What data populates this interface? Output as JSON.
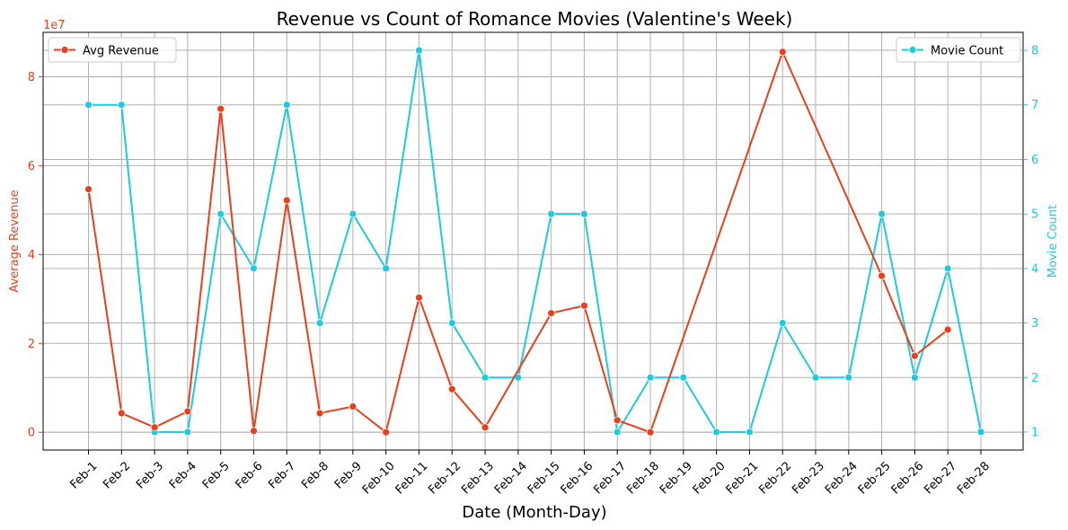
{
  "chart_data": {
    "type": "line",
    "title": "Revenue vs Count of Romance Movies (Valentine's Week)",
    "xlabel": "Date (Month-Day)",
    "categories": [
      "Feb-1",
      "Feb-2",
      "Feb-3",
      "Feb-4",
      "Feb-5",
      "Feb-6",
      "Feb-7",
      "Feb-8",
      "Feb-9",
      "Feb-10",
      "Feb-11",
      "Feb-12",
      "Feb-13",
      "Feb-14",
      "Feb-15",
      "Feb-16",
      "Feb-17",
      "Feb-18",
      "Feb-19",
      "Feb-20",
      "Feb-21",
      "Feb-22",
      "Feb-23",
      "Feb-24",
      "Feb-25",
      "Feb-26",
      "Feb-27",
      "Feb-28"
    ],
    "grid": true,
    "left_axis": {
      "label": "Average Revenue",
      "color": "#e8401c",
      "ylim": [
        -4000000,
        90000000
      ],
      "ticks": [
        0,
        20000000,
        40000000,
        60000000,
        80000000
      ],
      "tick_labels": [
        "0",
        "2",
        "4",
        "6",
        "8"
      ],
      "offset_label": "1e7"
    },
    "right_axis": {
      "label": "Movie Count",
      "color": "#1ecadf",
      "ylim": [
        0.67,
        8.33
      ],
      "ticks": [
        1,
        2,
        3,
        4,
        5,
        6,
        7,
        8
      ],
      "tick_labels": [
        "1",
        "2",
        "3",
        "4",
        "5",
        "6",
        "7",
        "8"
      ]
    },
    "series": [
      {
        "name": "Avg Revenue",
        "axis": "left",
        "color": "#e8401c",
        "x": [
          "Feb-1",
          "Feb-2",
          "Feb-3",
          "Feb-4",
          "Feb-5",
          "Feb-6",
          "Feb-7",
          "Feb-8",
          "Feb-9",
          "Feb-10",
          "Feb-11",
          "Feb-12",
          "Feb-13",
          "Feb-15",
          "Feb-16",
          "Feb-17",
          "Feb-18",
          "Feb-22",
          "Feb-25",
          "Feb-26",
          "Feb-27"
        ],
        "values": [
          54700000,
          4300000,
          1100000,
          4700000,
          72800000,
          300000,
          52200000,
          4300000,
          5800000,
          0,
          30300000,
          9700000,
          1100000,
          26800000,
          28500000,
          2700000,
          0,
          85600000,
          35200000,
          17200000,
          23100000
        ]
      },
      {
        "name": "Movie Count",
        "axis": "right",
        "color": "#1ecadf",
        "x": [
          "Feb-1",
          "Feb-2",
          "Feb-3",
          "Feb-4",
          "Feb-5",
          "Feb-6",
          "Feb-7",
          "Feb-8",
          "Feb-9",
          "Feb-10",
          "Feb-11",
          "Feb-12",
          "Feb-13",
          "Feb-14",
          "Feb-15",
          "Feb-16",
          "Feb-17",
          "Feb-18",
          "Feb-19",
          "Feb-20",
          "Feb-21",
          "Feb-22",
          "Feb-23",
          "Feb-24",
          "Feb-25",
          "Feb-26",
          "Feb-27",
          "Feb-28"
        ],
        "values": [
          7,
          7,
          1,
          1,
          5,
          4,
          7,
          3,
          5,
          4,
          8,
          3,
          2,
          2,
          5,
          5,
          1,
          2,
          2,
          1,
          1,
          3,
          2,
          2,
          5,
          2,
          4,
          1
        ]
      }
    ],
    "legends": [
      {
        "series": "Avg Revenue",
        "placement": "top-left"
      },
      {
        "series": "Movie Count",
        "placement": "top-right"
      }
    ]
  }
}
